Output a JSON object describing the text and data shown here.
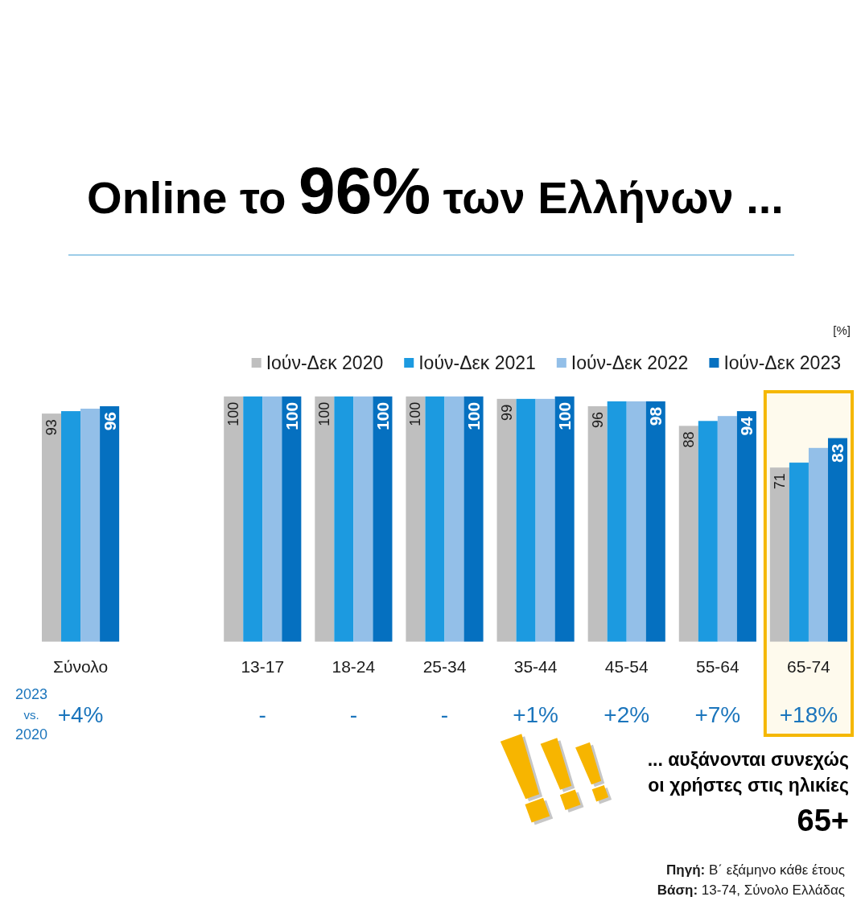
{
  "chart_data": {
    "type": "bar",
    "title": "Online το 96% των Ελλήνων ...",
    "ylabel": "[%]",
    "categories": [
      "Σύνολο",
      "13-17",
      "18-24",
      "25-34",
      "35-44",
      "45-54",
      "55-64",
      "65-74"
    ],
    "series": [
      {
        "name": "Ιούν-Δεκ 2020",
        "color": "#bfbfbf",
        "values": [
          93,
          100,
          100,
          100,
          99,
          96,
          88,
          71
        ],
        "value_labels": [
          "93",
          "100",
          "100",
          "100",
          "99",
          "96",
          "88",
          "71"
        ]
      },
      {
        "name": "Ιούν-Δεκ 2021",
        "color": "#1c9ae0",
        "values": [
          94,
          100,
          100,
          100,
          99,
          98,
          90,
          73
        ]
      },
      {
        "name": "Ιούν-Δεκ 2022",
        "color": "#93bfe8",
        "values": [
          95,
          100,
          100,
          100,
          99,
          98,
          92,
          79
        ]
      },
      {
        "name": "Ιούν-Δεκ 2023",
        "color": "#0570c0",
        "values": [
          96,
          100,
          100,
          100,
          100,
          98,
          94,
          83
        ],
        "value_labels": [
          "96",
          "100",
          "100",
          "100",
          "100",
          "98",
          "94",
          "83"
        ]
      }
    ],
    "ylim": [
      0,
      100
    ],
    "tick_labels": "x",
    "legend": "top right",
    "bands": [
      {
        "axis": "x",
        "from": "65-74",
        "to": "65-74",
        "color": "#f5b700"
      }
    ],
    "annotations": [
      "2023 vs. 2020",
      "+4%",
      "-",
      "-",
      "-",
      "+1%",
      "+2%",
      "+7%",
      "+18%",
      "... αυξάνονται συνεχώς\nοι χρήστες στις ηλικίες\n65+",
      "Πηγή: Β΄ εξάμηνο κάθε έτους",
      "Βάση: 13-74, Σύνολο Ελλάδας"
    ]
  }
}
